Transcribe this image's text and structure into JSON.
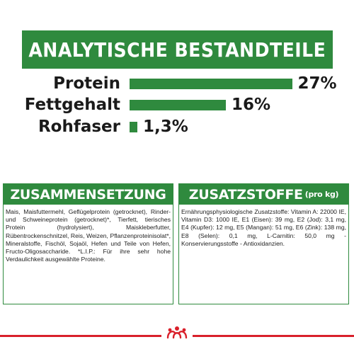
{
  "header": {
    "title": "ANALYTISCHE BESTANDTEILE"
  },
  "nutrients": [
    {
      "label": "Protein",
      "value": "27%",
      "percent": 27
    },
    {
      "label": "Fettgehalt",
      "value": "16%",
      "percent": 16
    },
    {
      "label": "Rohfaser",
      "value": "1,3%",
      "percent": 1.3
    }
  ],
  "composition": {
    "title": "ZUSAMMENSETZUNG",
    "text": "Mais, Maisfuttermehl, Geflügelprotein (getrocknet), Rinder- und Schweineprotein (getrocknet)*, Tierfett, tierisches Protein (hydrolysiert), Maiskleberfutter, Rübentrockenschnitzel, Reis, Weizen, Pflanzenproteinisolat*, Mineralstoffe, Fischöl, Sojaöl, Hefen und Teile von Hefen, Fructo-Oligosaccharide. *L.I.P.: Für ihre sehr hohe Verdaulichkeit ausgewählte Proteine."
  },
  "additives": {
    "title": "ZUSATZSTOFFE",
    "subtitle": "(pro kg)",
    "text": "Ernährungsphysiologische Zusatzstoffe: Vitamin A: 22000 IE, Vitamin D3: 1000 IE, E1 (Eisen): 39 mg, E2 (Jod): 3,1 mg, E4 (Kupfer): 12 mg, E5 (Mangan): 51 mg, E6 (Zink): 138 mg, E8 (Selen): 0,1 mg, L-Carnitin: 50,0 mg - Konservierungsstoffe - Antioxidanzien."
  },
  "colors": {
    "brand_green": "#2f8a3e",
    "brand_red": "#d9202b"
  },
  "icons": {
    "logo": "royal-canin-crown-icon"
  }
}
